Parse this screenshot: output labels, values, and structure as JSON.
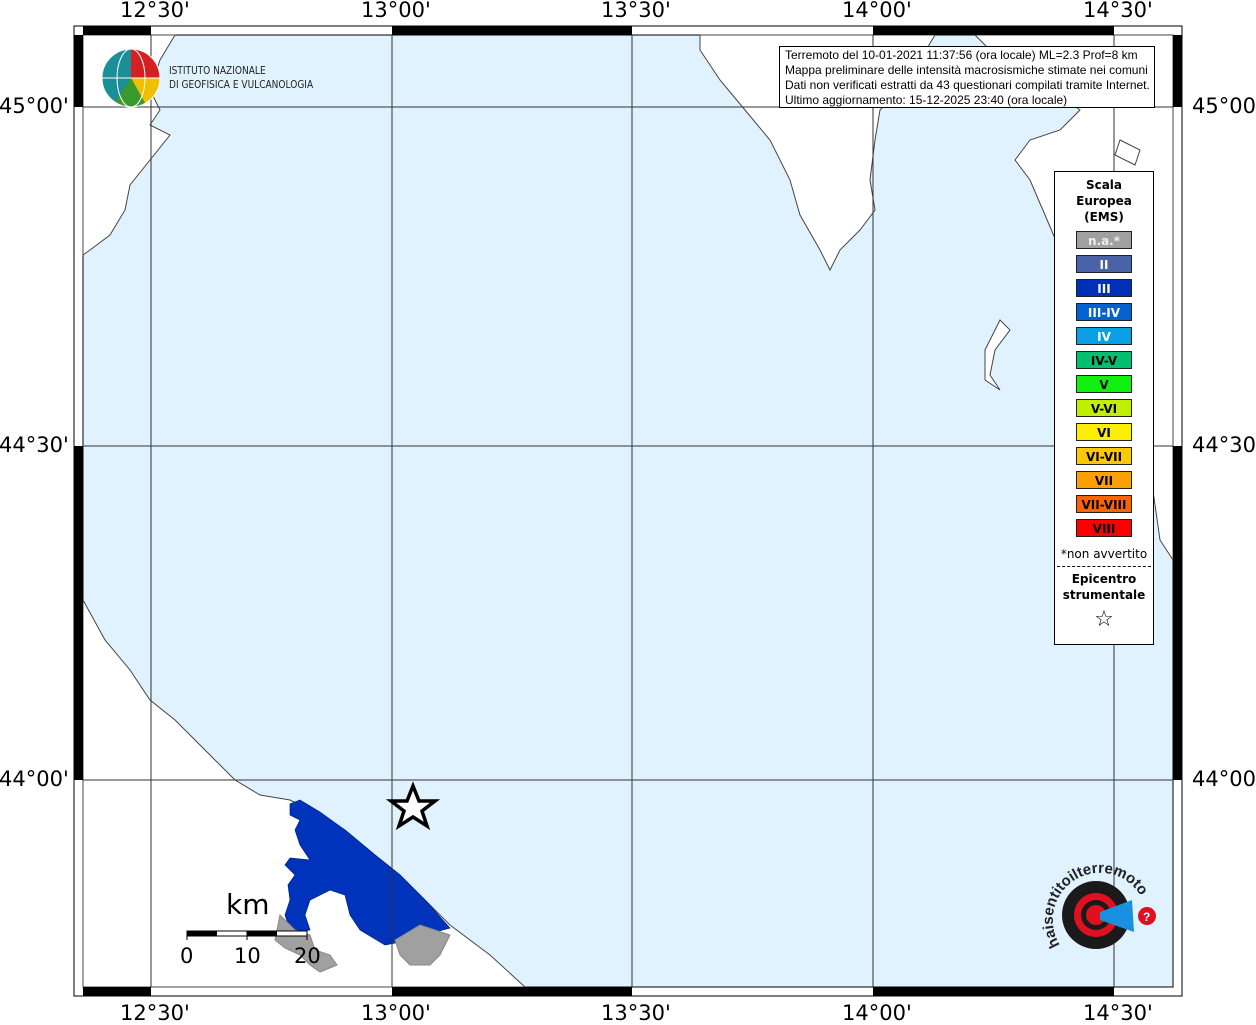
{
  "map": {
    "lon_labels": [
      "12°30'",
      "13°00'",
      "13°30'",
      "14°00'",
      "14°30'"
    ],
    "lat_labels": [
      "45°00'",
      "44°30'",
      "44°00'"
    ],
    "sea_color": "#e0f2fe",
    "affected_area_color": "#0033bb",
    "not_felt_color": "#a0a0a0",
    "epicenter_icon": "star-icon"
  },
  "info": {
    "lines": [
      "Terremoto del 10-01-2021 11:37:56 (ora locale) ML=2.3 Prof=8 km",
      "Mappa preliminare delle intensità macrosismiche stimate nei comuni",
      "Dati non verificati estratti da 43 questionari compilati tramite Internet.",
      "Ultimo aggiornamento: 15-12-2025 23:40 (ora locale)"
    ]
  },
  "logo": {
    "ingv_line1": "ISTITUTO NAZIONALE",
    "ingv_line2": "DI GEOFISICA E VULCANOLOGIA",
    "hsit": "www.haisentitoilterremoto.it"
  },
  "legend": {
    "title": [
      "Scala",
      "Europea",
      "(EMS)"
    ],
    "items": [
      {
        "label": "n.a.*",
        "color": "#a0a0a0",
        "text": "#eeeeee"
      },
      {
        "label": "II",
        "color": "#4a63a8",
        "text": "#ffffff"
      },
      {
        "label": "III",
        "color": "#0030b8",
        "text": "#ffffff"
      },
      {
        "label": "III-IV",
        "color": "#0462d0",
        "text": "#ffffff"
      },
      {
        "label": "IV",
        "color": "#0ba0e6",
        "text": "#ffffff"
      },
      {
        "label": "IV-V",
        "color": "#00c070",
        "text": "#000000"
      },
      {
        "label": "V",
        "color": "#10f010",
        "text": "#000000"
      },
      {
        "label": "V-VI",
        "color": "#c0f000",
        "text": "#000000"
      },
      {
        "label": "VI",
        "color": "#fcf000",
        "text": "#000000"
      },
      {
        "label": "VI-VII",
        "color": "#fcc800",
        "text": "#000000"
      },
      {
        "label": "VII",
        "color": "#fca000",
        "text": "#000000"
      },
      {
        "label": "VII-VIII",
        "color": "#fc6400",
        "text": "#000000"
      },
      {
        "label": "VIII",
        "color": "#fc0000",
        "text": "#000000"
      }
    ],
    "note": "*non avvertito",
    "epicenter": [
      "Epicentro",
      "strumentale"
    ]
  },
  "scale": {
    "unit": "km",
    "labels": [
      "0",
      "10",
      "20"
    ]
  }
}
